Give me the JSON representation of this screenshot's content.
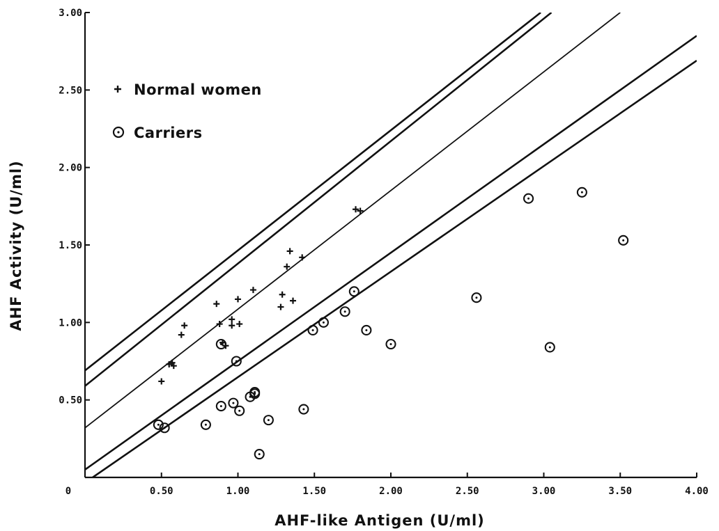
{
  "chart_data": {
    "type": "scatter",
    "title": "",
    "xlabel": "AHF-like Antigen (U/ml)",
    "ylabel": "AHF Activity (U/ml)",
    "xlim": [
      0,
      4.0
    ],
    "ylim": [
      0,
      3.0
    ],
    "x_ticks": [
      0,
      0.5,
      1.0,
      1.5,
      2.0,
      2.5,
      3.0,
      3.5,
      4.0
    ],
    "x_tick_labels": [
      "0",
      "0.50",
      "1.00",
      "1.50",
      "2.00",
      "2.50",
      "3.00",
      "3.50",
      "4.00"
    ],
    "y_ticks": [
      0.5,
      1.0,
      1.5,
      2.0,
      2.5,
      3.0
    ],
    "y_tick_labels": [
      "0.50",
      "1.00",
      "1.50",
      "2.00",
      "2.50",
      "3.00"
    ],
    "grid": false,
    "legend_position": "top-left",
    "series": [
      {
        "name": "Normal women",
        "marker": "plus",
        "points": [
          [
            0.5,
            0.62
          ],
          [
            0.55,
            0.73
          ],
          [
            0.57,
            0.74
          ],
          [
            0.58,
            0.72
          ],
          [
            0.63,
            0.92
          ],
          [
            0.65,
            0.98
          ],
          [
            0.86,
            1.12
          ],
          [
            0.88,
            0.99
          ],
          [
            0.9,
            0.87
          ],
          [
            0.92,
            0.85
          ],
          [
            0.96,
            1.02
          ],
          [
            0.96,
            0.98
          ],
          [
            1.0,
            1.15
          ],
          [
            1.01,
            0.99
          ],
          [
            1.1,
            1.21
          ],
          [
            1.28,
            1.1
          ],
          [
            1.29,
            1.18
          ],
          [
            1.32,
            1.36
          ],
          [
            1.34,
            1.46
          ],
          [
            1.36,
            1.14
          ],
          [
            1.42,
            1.42
          ],
          [
            1.77,
            1.73
          ],
          [
            1.8,
            1.72
          ]
        ]
      },
      {
        "name": "Carriers",
        "marker": "circle-dot",
        "points": [
          [
            0.48,
            0.34
          ],
          [
            0.52,
            0.32
          ],
          [
            0.79,
            0.34
          ],
          [
            0.89,
            0.86
          ],
          [
            0.89,
            0.46
          ],
          [
            0.97,
            0.48
          ],
          [
            0.99,
            0.75
          ],
          [
            1.01,
            0.43
          ],
          [
            1.08,
            0.52
          ],
          [
            1.11,
            0.54
          ],
          [
            1.11,
            0.55
          ],
          [
            1.14,
            0.15
          ],
          [
            1.2,
            0.37
          ],
          [
            1.43,
            0.44
          ],
          [
            1.49,
            0.95
          ],
          [
            1.56,
            1.0
          ],
          [
            1.7,
            1.07
          ],
          [
            1.76,
            1.2
          ],
          [
            1.84,
            0.95
          ],
          [
            2.0,
            0.86
          ],
          [
            2.56,
            1.16
          ],
          [
            2.9,
            1.8
          ],
          [
            3.04,
            0.84
          ],
          [
            3.25,
            1.84
          ],
          [
            3.52,
            1.53
          ]
        ]
      }
    ],
    "reference_lines": [
      {
        "style": "bold",
        "points": [
          [
            0,
            0.69
          ],
          [
            2.98,
            3.0
          ]
        ]
      },
      {
        "style": "bold",
        "points": [
          [
            0,
            0.59
          ],
          [
            3.05,
            3.0
          ]
        ]
      },
      {
        "style": "regular",
        "points": [
          [
            0,
            0.32
          ],
          [
            3.5,
            3.0
          ]
        ]
      },
      {
        "style": "bold",
        "points": [
          [
            0,
            0.05
          ],
          [
            4.0,
            2.85
          ]
        ]
      },
      {
        "style": "bold",
        "points": [
          [
            0.05,
            0.0
          ],
          [
            4.0,
            2.69
          ]
        ]
      }
    ]
  }
}
